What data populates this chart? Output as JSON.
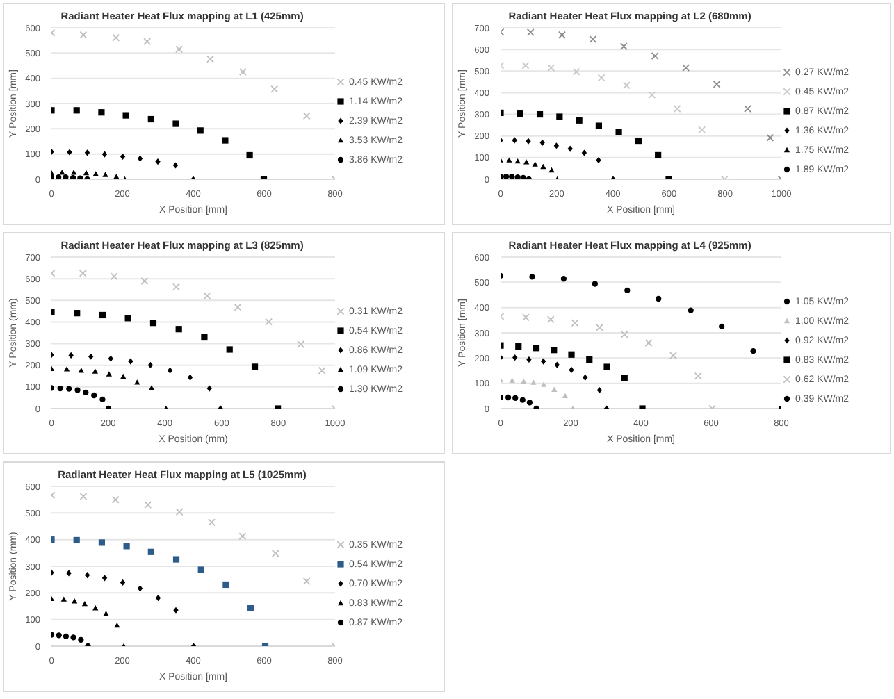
{
  "chart_data": [
    {
      "type": "scatter",
      "title": "Radiant Heater Heat Flux mapping at L1 (425mm)",
      "xlabel": "X Position [mm]",
      "ylabel": "Y Position [mm]",
      "xlim": [
        0,
        800
      ],
      "xticks": [
        0,
        200,
        400,
        600,
        800
      ],
      "ylim": [
        0,
        600
      ],
      "yticks": [
        0,
        100,
        200,
        300,
        400,
        500,
        600
      ],
      "grid": "y",
      "legend": "right",
      "series": [
        {
          "name": "0.45 KW/m2",
          "color": "#bfbfbf",
          "marker": "cross",
          "x": [
            0,
            90,
            182,
            270,
            360,
            448,
            540,
            629,
            720,
            800
          ],
          "values": [
            580,
            572,
            561,
            546,
            515,
            476,
            425,
            357,
            251,
            0
          ]
        },
        {
          "name": "1.14 KW/m2",
          "color": "#000000",
          "marker": "square",
          "x": [
            0,
            71,
            141,
            210,
            281,
            351,
            420,
            490,
            559,
            599
          ],
          "values": [
            273,
            273,
            265,
            253,
            238,
            220,
            193,
            154,
            95,
            0
          ]
        },
        {
          "name": "2.39 KW/m2",
          "color": "#000000",
          "marker": "diamond",
          "x": [
            0,
            51,
            101,
            150,
            201,
            250,
            300,
            350,
            400
          ],
          "values": [
            109,
            107,
            105,
            99,
            90,
            82,
            70,
            55,
            0
          ]
        },
        {
          "name": "3.53 KW/m2",
          "color": "#000000",
          "marker": "triangle",
          "x": [
            0,
            30,
            63,
            98,
            125,
            152,
            183,
            207
          ],
          "values": [
            25,
            27,
            27,
            25,
            21,
            18,
            10,
            0
          ]
        },
        {
          "name": "3.86 KW/m2",
          "color": "#000000",
          "marker": "circle",
          "x": [
            0,
            20,
            40,
            61,
            81,
            101
          ],
          "values": [
            8,
            8,
            8,
            6,
            4,
            0
          ]
        }
      ]
    },
    {
      "type": "scatter",
      "title": "Radiant Heater Heat Flux mapping at L2 (680mm)",
      "xlabel": "X Position [mm]",
      "ylabel": "Y Position [mm]",
      "xlim": [
        0,
        1000
      ],
      "xticks": [
        0,
        200,
        400,
        600,
        800,
        1000
      ],
      "ylim": [
        0,
        700
      ],
      "yticks": [
        0,
        100,
        200,
        300,
        400,
        500,
        600,
        700
      ],
      "grid": "y",
      "legend": "right",
      "series": [
        {
          "name": "0.27 KW/m2",
          "color": "#8c8c8c",
          "marker": "cross",
          "x": [
            0,
            107,
            219,
            329,
            439,
            550,
            660,
            770,
            880,
            960,
            1000
          ],
          "values": [
            681,
            679,
            667,
            647,
            614,
            570,
            515,
            439,
            326,
            192,
            0
          ]
        },
        {
          "name": "0.45 KW/m2",
          "color": "#c8c8c8",
          "marker": "cross",
          "x": [
            0,
            89,
            180,
            270,
            359,
            449,
            539,
            629,
            717,
            798
          ],
          "values": [
            526,
            526,
            515,
            497,
            469,
            434,
            390,
            326,
            229,
            0
          ]
        },
        {
          "name": "0.87 KW/m2",
          "color": "#000000",
          "marker": "square",
          "x": [
            0,
            70,
            140,
            210,
            280,
            350,
            421,
            491,
            561,
            599
          ],
          "values": [
            307,
            303,
            300,
            289,
            272,
            247,
            219,
            178,
            111,
            0
          ]
        },
        {
          "name": "1.36 KW/m2",
          "color": "#000000",
          "marker": "diamond",
          "x": [
            0,
            50,
            99,
            149,
            199,
            248,
            298,
            349,
            401
          ],
          "values": [
            180,
            180,
            176,
            169,
            155,
            141,
            122,
            88,
            0
          ]
        },
        {
          "name": "1.75 KW/m2",
          "color": "#000000",
          "marker": "triangle",
          "x": [
            0,
            31,
            61,
            92,
            123,
            152,
            182,
            202
          ],
          "values": [
            88,
            88,
            83,
            79,
            69,
            58,
            42,
            0
          ]
        },
        {
          "name": "1.89 KW/m2",
          "color": "#000000",
          "marker": "circle",
          "x": [
            0,
            20,
            40,
            61,
            81,
            101
          ],
          "values": [
            12,
            12,
            12,
            9,
            7,
            0
          ]
        }
      ]
    },
    {
      "type": "scatter",
      "title": "Radiant Heater Heat Flux mapping at L3 (825mm)",
      "xlabel": "X Position (mm)",
      "ylabel": "Y Position (mm)",
      "xlim": [
        0,
        1000
      ],
      "xticks": [
        0,
        200,
        400,
        600,
        800,
        1000
      ],
      "ylim": [
        0,
        700
      ],
      "yticks": [
        0,
        100,
        200,
        300,
        400,
        500,
        600,
        700
      ],
      "grid": "y",
      "legend": "right",
      "series": [
        {
          "name": "0.31 KW/m2",
          "color": "#bfbfbf",
          "marker": "cross",
          "x": [
            0,
            111,
            221,
            328,
            440,
            549,
            657,
            766,
            879,
            954,
            1000
          ],
          "values": [
            625,
            625,
            611,
            589,
            562,
            521,
            469,
            401,
            297,
            176,
            0
          ]
        },
        {
          "name": "0.54 KW/m2",
          "color": "#000000",
          "marker": "square",
          "x": [
            0,
            90,
            180,
            270,
            359,
            449,
            539,
            628,
            717,
            798
          ],
          "values": [
            445,
            441,
            432,
            418,
            396,
            367,
            329,
            273,
            193,
            0
          ]
        },
        {
          "name": "0.86 KW/m2",
          "color": "#000000",
          "marker": "diamond",
          "x": [
            0,
            69,
            139,
            209,
            279,
            349,
            418,
            489,
            557,
            596
          ],
          "values": [
            248,
            246,
            240,
            231,
            218,
            201,
            176,
            144,
            93,
            0
          ]
        },
        {
          "name": "1.09 KW/m2",
          "color": "#000000",
          "marker": "triangle",
          "x": [
            0,
            54,
            105,
            154,
            203,
            253,
            302,
            353,
            404
          ],
          "values": [
            184,
            182,
            176,
            172,
            159,
            148,
            121,
            95,
            0
          ]
        },
        {
          "name": "1.30 KW/m2",
          "color": "#000000",
          "marker": "circle",
          "x": [
            0,
            31,
            62,
            92,
            121,
            150,
            180,
            201
          ],
          "values": [
            95,
            93,
            91,
            85,
            74,
            61,
            42,
            0
          ]
        }
      ]
    },
    {
      "type": "scatter",
      "title": "Radiant Heater Heat Flux mapping at L4 (925mm)",
      "xlabel": "X Position [mm]",
      "ylabel": "Y Position [mm]",
      "xlim": [
        0,
        800
      ],
      "xticks": [
        0,
        200,
        400,
        600,
        800
      ],
      "ylim": [
        0,
        600
      ],
      "yticks": [
        0,
        100,
        200,
        300,
        400,
        500,
        600
      ],
      "grid": "y",
      "legend": "right",
      "series": [
        {
          "name": "1.05 KW/m2",
          "color": "#000000",
          "marker": "circle",
          "x": [
            0,
            22,
            42,
            63,
            83,
            102
          ],
          "values": [
            44,
            44,
            42,
            34,
            24,
            0
          ]
        },
        {
          "name": "1.00 KW/m2",
          "color": "#bfbfbf",
          "marker": "triangle",
          "x": [
            0,
            33,
            66,
            94,
            123,
            153,
            184,
            206
          ],
          "values": [
            113,
            111,
            107,
            103,
            95,
            75,
            50,
            0
          ]
        },
        {
          "name": "0.92 KW/m2",
          "color": "#000000",
          "marker": "diamond",
          "x": [
            0,
            41,
            81,
            122,
            161,
            202,
            241,
            282,
            302
          ],
          "values": [
            202,
            202,
            194,
            187,
            173,
            153,
            123,
            73,
            0
          ]
        },
        {
          "name": "0.83 KW/m2",
          "color": "#000000",
          "marker": "square",
          "x": [
            0,
            51,
            102,
            152,
            202,
            253,
            303,
            353,
            404
          ],
          "values": [
            250,
            246,
            240,
            232,
            214,
            194,
            165,
            121,
            0
          ]
        },
        {
          "name": "0.62 KW/m2",
          "color": "#bfbfbf",
          "marker": "cross",
          "x": [
            0,
            72,
            143,
            212,
            282,
            353,
            422,
            492,
            563,
            603
          ],
          "values": [
            365,
            361,
            353,
            339,
            321,
            294,
            260,
            210,
            129,
            0
          ]
        },
        {
          "name": "0.39 KW/m2",
          "color": "#000000",
          "marker": "circle",
          "x": [
            0,
            90,
            180,
            269,
            361,
            450,
            542,
            630,
            720,
            800
          ],
          "values": [
            526,
            522,
            514,
            494,
            468,
            435,
            389,
            325,
            228,
            0
          ]
        }
      ]
    },
    {
      "type": "scatter",
      "title": "Radiant Heater Heat Flux mapping at L5 (1025mm)",
      "xlabel": "X Position [mm]",
      "ylabel": "Y Position (mm)",
      "xlim": [
        0,
        800
      ],
      "xticks": [
        0,
        200,
        400,
        600,
        800
      ],
      "ylim": [
        0,
        600
      ],
      "yticks": [
        0,
        100,
        200,
        300,
        400,
        500,
        600
      ],
      "grid": "y",
      "legend": "right",
      "series": [
        {
          "name": "0.35 KW/m2",
          "color": "#bfbfbf",
          "marker": "cross",
          "x": [
            0,
            90,
            181,
            272,
            361,
            452,
            539,
            632,
            720,
            800
          ],
          "values": [
            567,
            562,
            550,
            531,
            504,
            465,
            413,
            348,
            244,
            0
          ]
        },
        {
          "name": "0.54 KW/m2",
          "color": "#2e5c8a",
          "marker": "square",
          "x": [
            0,
            71,
            142,
            212,
            281,
            352,
            422,
            492,
            562,
            603
          ],
          "values": [
            400,
            398,
            389,
            376,
            354,
            326,
            287,
            231,
            144,
            0
          ]
        },
        {
          "name": "0.70 KW/m2",
          "color": "#000000",
          "marker": "diamond",
          "x": [
            0,
            49,
            101,
            150,
            201,
            250,
            301,
            351,
            401
          ],
          "values": [
            276,
            274,
            267,
            256,
            239,
            217,
            181,
            135,
            0
          ]
        },
        {
          "name": "0.83 KW/m2",
          "color": "#000000",
          "marker": "triangle",
          "x": [
            0,
            35,
            65,
            94,
            124,
            154,
            185,
            204
          ],
          "values": [
            178,
            176,
            169,
            159,
            143,
            122,
            78,
            0
          ]
        },
        {
          "name": "0.87 KW/m2",
          "color": "#000000",
          "marker": "circle",
          "x": [
            0,
            21,
            41,
            62,
            83,
            103
          ],
          "values": [
            43,
            41,
            37,
            33,
            24,
            0
          ]
        }
      ]
    }
  ]
}
